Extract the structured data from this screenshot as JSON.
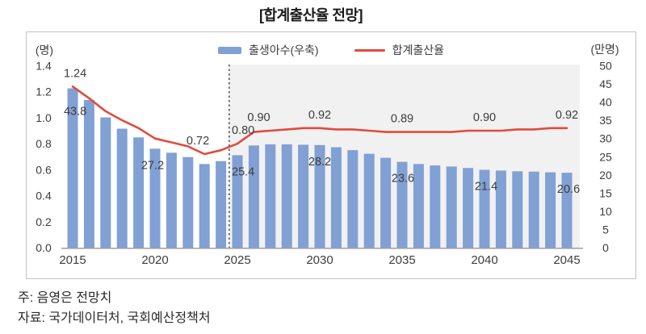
{
  "title": "[합계출산율 전망]",
  "legend": {
    "bar_label": "출생아수(우축)",
    "line_label": "합계출산율"
  },
  "notes": {
    "note": "주: 음영은 전망치",
    "source": "자료: 국가데이터처, 국회예산정책처"
  },
  "colors": {
    "bar": "#81A0D4",
    "line": "#E04B3E",
    "forecast_shade": "#F1F1F1",
    "axis": "#9E9E9E",
    "border": "#C2C2C2",
    "dashed": "#595959",
    "text": "#3D3D3D"
  },
  "chart_data": {
    "type": "combo",
    "title": "[합계출산율 전망]",
    "x": [
      2015,
      2016,
      2017,
      2018,
      2019,
      2020,
      2021,
      2022,
      2023,
      2024,
      2025,
      2026,
      2027,
      2028,
      2029,
      2030,
      2031,
      2032,
      2033,
      2034,
      2035,
      2036,
      2037,
      2038,
      2039,
      2040,
      2041,
      2042,
      2043,
      2044,
      2045
    ],
    "x_ticks": [
      2015,
      2020,
      2025,
      2030,
      2035,
      2040,
      2045
    ],
    "series": [
      {
        "name": "출생아수(우축)",
        "type": "bar",
        "axis": "right",
        "values": [
          43.8,
          40.6,
          35.8,
          32.7,
          30.3,
          27.2,
          26.1,
          24.9,
          23.0,
          23.8,
          25.4,
          28.1,
          28.4,
          28.4,
          28.3,
          28.2,
          27.6,
          26.8,
          25.8,
          24.7,
          23.6,
          23.0,
          22.6,
          22.3,
          21.9,
          21.4,
          21.2,
          21.0,
          20.9,
          20.7,
          20.6
        ]
      },
      {
        "name": "합계출산율",
        "type": "line",
        "axis": "left",
        "values": [
          1.24,
          1.15,
          1.05,
          0.98,
          0.92,
          0.84,
          0.81,
          0.78,
          0.72,
          0.75,
          0.8,
          0.89,
          0.9,
          0.91,
          0.92,
          0.92,
          0.91,
          0.91,
          0.9,
          0.89,
          0.89,
          0.89,
          0.89,
          0.89,
          0.9,
          0.9,
          0.9,
          0.91,
          0.91,
          0.92,
          0.92
        ]
      }
    ],
    "left_axis": {
      "label": "(명)",
      "min": 0,
      "max": 1.4,
      "step": 0.2
    },
    "right_axis": {
      "label": "(만명)",
      "min": 0,
      "max": 50,
      "step": 5
    },
    "forecast_start": 2024.5,
    "forecast_note": "음영은 전망치",
    "annotations": {
      "line": [
        {
          "text": "1.24",
          "year": 2015.15
        },
        {
          "text": "0.72",
          "year": 2022.6
        },
        {
          "text": "0.80",
          "year": 2025.35
        },
        {
          "text": "0.90",
          "year": 2026.3
        },
        {
          "text": "0.92",
          "year": 2030
        },
        {
          "text": "0.89",
          "year": 2035
        },
        {
          "text": "0.90",
          "year": 2040
        },
        {
          "text": "0.92",
          "year": 2045
        }
      ],
      "bar": [
        {
          "text": "43.8",
          "year": 2015.15
        },
        {
          "text": "27.2",
          "year": 2019.85
        },
        {
          "text": "25.4",
          "year": 2025.35
        },
        {
          "text": "28.2",
          "year": 2030
        },
        {
          "text": "23.6",
          "year": 2035.05
        },
        {
          "text": "21.4",
          "year": 2040.1
        },
        {
          "text": "20.6",
          "year": 2045.1
        }
      ]
    }
  }
}
